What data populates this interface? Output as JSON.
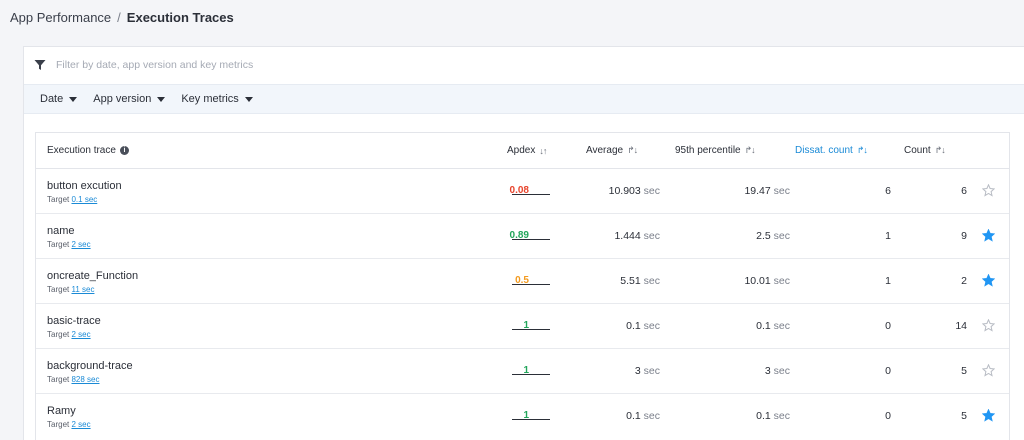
{
  "breadcrumb": {
    "root": "App Performance",
    "separator": "/",
    "current": "Execution Traces"
  },
  "filter": {
    "placeholder": "Filter by date, app version and key metrics",
    "icon": "filter-icon"
  },
  "dropdowns": [
    {
      "label": "Date"
    },
    {
      "label": "App version"
    },
    {
      "label": "Key metrics"
    }
  ],
  "table": {
    "headers": {
      "trace": "Execution trace",
      "apdex": "Apdex",
      "average": "Average",
      "p95": "95th percentile",
      "dissat": "Dissat. count",
      "count": "Count"
    },
    "sort_icons": {
      "apdex": "↓↑",
      "default": "↱↓"
    },
    "target_label": "Target",
    "rows": [
      {
        "name": "button excution",
        "target": "0.1 sec",
        "apdex": "0.08",
        "apdex_color": "#e8442c",
        "average": "10.903",
        "p95": "19.47",
        "unit": "sec",
        "dissat": "6",
        "count": "6",
        "starred": false
      },
      {
        "name": "name",
        "target": "2 sec",
        "apdex": "0.89",
        "apdex_color": "#22a55a",
        "average": "1.444",
        "p95": "2.5",
        "unit": "sec",
        "dissat": "1",
        "count": "9",
        "starred": true
      },
      {
        "name": "oncreate_Function",
        "target": "11 sec",
        "apdex": "0.5",
        "apdex_color": "#f39a1e",
        "average": "5.51",
        "p95": "10.01",
        "unit": "sec",
        "dissat": "1",
        "count": "2",
        "starred": true
      },
      {
        "name": "basic-trace",
        "target": "2 sec",
        "apdex": "1",
        "apdex_color": "#22a55a",
        "average": "0.1",
        "p95": "0.1",
        "unit": "sec",
        "dissat": "0",
        "count": "14",
        "starred": false
      },
      {
        "name": "background-trace",
        "target": "828 sec",
        "apdex": "1",
        "apdex_color": "#22a55a",
        "average": "3",
        "p95": "3",
        "unit": "sec",
        "dissat": "0",
        "count": "5",
        "starred": false
      },
      {
        "name": "Ramy",
        "target": "2 sec",
        "apdex": "1",
        "apdex_color": "#22a55a",
        "average": "0.1",
        "p95": "0.1",
        "unit": "sec",
        "dissat": "0",
        "count": "5",
        "starred": true
      }
    ]
  },
  "colors": {
    "accent": "#1a8ad6",
    "star_filled": "#2196f3",
    "star_empty": "#b8bcc4"
  }
}
